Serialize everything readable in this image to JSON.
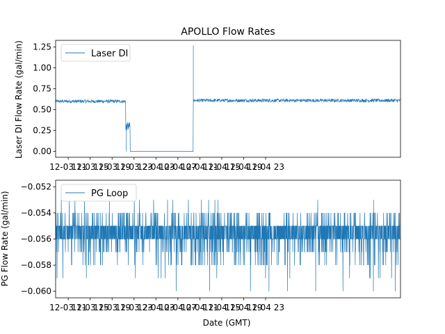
{
  "chart_data": [
    {
      "type": "line",
      "title": "APOLLO Flow Rates",
      "xlabel": "",
      "ylabel": "Laser DI Flow Rate (gal/min)",
      "ylim": [
        -0.07,
        1.33
      ],
      "xlim_hours": [
        8.7,
        71.6
      ],
      "grid": false,
      "legend": "upper-left",
      "y_ticks": [
        {
          "value": 0.0,
          "label": "0.00"
        },
        {
          "value": 0.25,
          "label": "0.25"
        },
        {
          "value": 0.5,
          "label": "0.50"
        },
        {
          "value": 0.75,
          "label": "0.75"
        },
        {
          "value": 1.0,
          "label": "1.00"
        },
        {
          "value": 1.25,
          "label": "1.25"
        }
      ],
      "series": [
        {
          "name": "Laser DI",
          "color": "#1f77b4",
          "segments": [
            {
              "from_hour": 8.7,
              "to_hour": 21.5,
              "mean": 0.6,
              "noise": 0.02
            },
            {
              "from_hour": 21.5,
              "to_hour": 22.3,
              "mean": 0.3,
              "noise": 0.05
            },
            {
              "from_hour": 22.3,
              "to_hour": 33.8,
              "mean": 0.0,
              "noise": 0.0
            },
            {
              "from_hour": 33.8,
              "to_hour": 71.6,
              "mean": 0.61,
              "noise": 0.02
            }
          ],
          "spikes": [
            {
              "hour": 33.8,
              "value": 1.27
            },
            {
              "hour": 21.6,
              "value": 0.0
            }
          ]
        }
      ]
    },
    {
      "type": "line",
      "title": "",
      "xlabel": "Date (GMT)",
      "ylabel": "PG Flow Rate (gal/min)",
      "ylim": [
        -0.0605,
        -0.0515
      ],
      "xlim_hours": [
        8.7,
        71.6
      ],
      "grid": false,
      "legend": "upper-left",
      "y_ticks": [
        {
          "value": -0.06,
          "label": "−0.060"
        },
        {
          "value": -0.058,
          "label": "−0.058"
        },
        {
          "value": -0.056,
          "label": "−0.056"
        },
        {
          "value": -0.054,
          "label": "−0.054"
        },
        {
          "value": -0.052,
          "label": "−0.052"
        }
      ],
      "series": [
        {
          "name": "PG Loop",
          "color": "#1f77b4",
          "levels": [
            -0.06,
            -0.059,
            -0.058,
            -0.057,
            -0.056,
            -0.055,
            -0.054,
            -0.053
          ],
          "mean": -0.0555
        }
      ]
    }
  ],
  "x_ticks": [
    {
      "hour": 11,
      "label": "12-03 11"
    },
    {
      "hour": 15,
      "label": "12-03 15"
    },
    {
      "hour": 19,
      "label": "12-03 19"
    },
    {
      "hour": 23,
      "label": "12-03 23"
    },
    {
      "hour": 27,
      "label": "12-04 03"
    },
    {
      "hour": 31,
      "label": "12-04 07"
    },
    {
      "hour": 35,
      "label": "12-04 11"
    },
    {
      "hour": 39,
      "label": "12-04 15"
    },
    {
      "hour": 43,
      "label": "12-04 19"
    },
    {
      "hour": 47,
      "label": "12-04 23"
    }
  ]
}
